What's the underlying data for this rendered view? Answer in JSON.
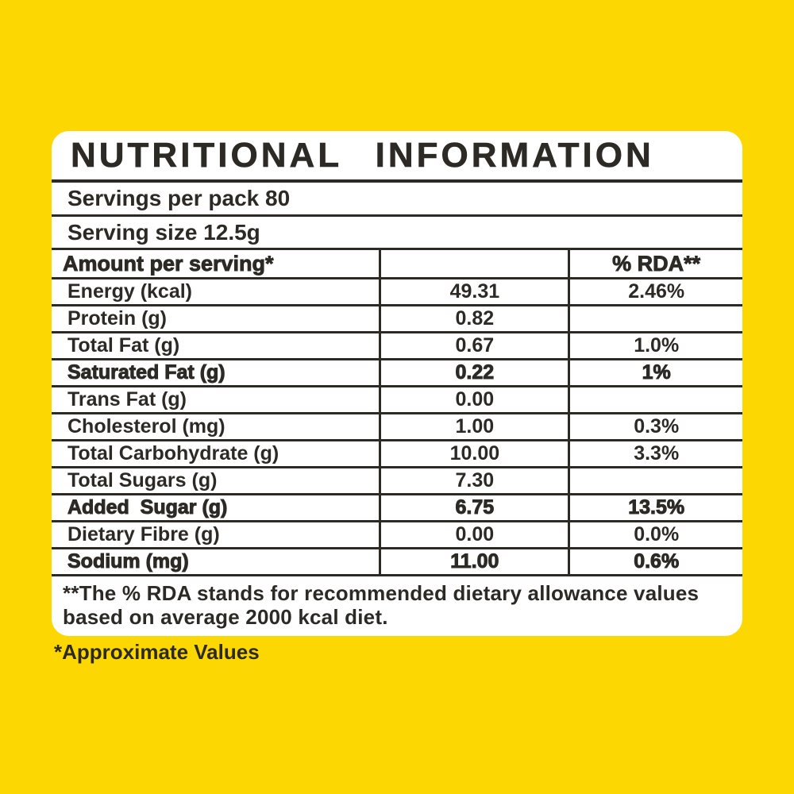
{
  "colors": {
    "background": "#FCD701",
    "card": "#FFFFFF",
    "ink": "#2D2A26"
  },
  "label": {
    "title": "NUTRITIONAL INFORMATION",
    "servings_per_pack": "Servings per pack 80",
    "serving_size": "Serving size 12.5g",
    "table": {
      "header": {
        "amount": "Amount per serving*",
        "value": "",
        "rda": "% RDA**"
      },
      "rows": [
        {
          "label": "Energy (kcal)",
          "value": "49.31",
          "rda": "2.46%",
          "bold": false
        },
        {
          "label": "Protein (g)",
          "value": "0.82",
          "rda": "",
          "bold": false
        },
        {
          "label": "Total Fat (g)",
          "value": "0.67",
          "rda": "1.0%",
          "bold": false
        },
        {
          "label": "Saturated Fat (g)",
          "value": "0.22",
          "rda": "1%",
          "bold": true
        },
        {
          "label": "Trans Fat (g)",
          "value": "0.00",
          "rda": "",
          "bold": false
        },
        {
          "label": "Cholesterol (mg)",
          "value": "1.00",
          "rda": "0.3%",
          "bold": false
        },
        {
          "label": "Total Carbohydrate (g)",
          "value": "10.00",
          "rda": "3.3%",
          "bold": false
        },
        {
          "label": "Total Sugars (g)",
          "value": "7.30",
          "rda": "",
          "bold": false
        },
        {
          "label": "Added  Sugar (g)",
          "value": "6.75",
          "rda": "13.5%",
          "bold": true
        },
        {
          "label": "Dietary Fibre (g)",
          "value": "0.00",
          "rda": "0.0%",
          "bold": false
        },
        {
          "label": "Sodium (mg)",
          "value": "11.00",
          "rda": "0.6%",
          "bold": true
        }
      ]
    },
    "rda_footnote": "**The % RDA stands for recommended dietary allowance values based on average 2000 kcal diet.",
    "approximate_note": "*Approximate Values"
  }
}
